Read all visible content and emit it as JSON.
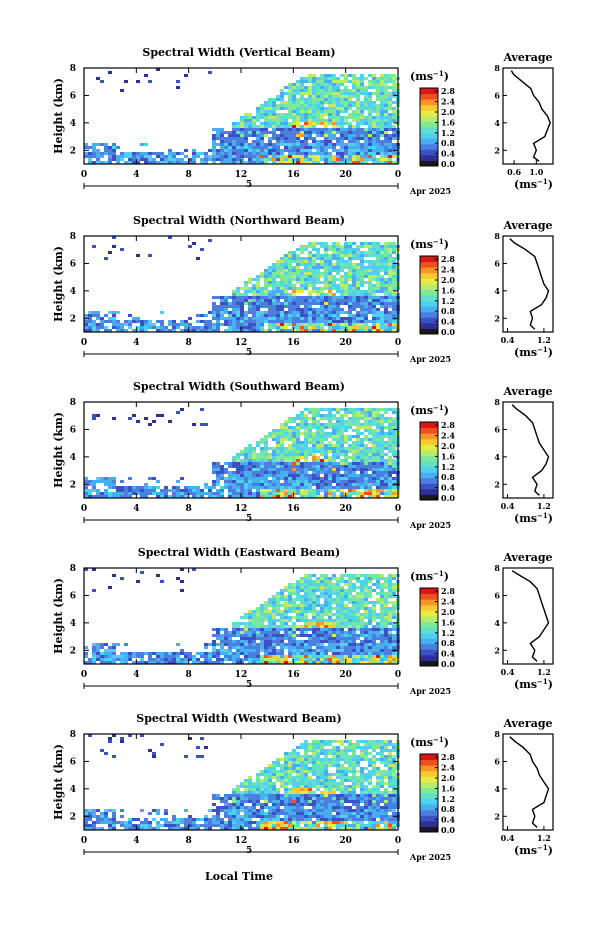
{
  "colors": {
    "colorscale": [
      "#1a1a1a",
      "#2e3192",
      "#3a52c4",
      "#4a7fe0",
      "#48aef0",
      "#4fd0f0",
      "#60e0c8",
      "#7ee89a",
      "#b8ec6a",
      "#e8ec40",
      "#f8c830",
      "#f89428",
      "#f05020",
      "#d81818"
    ]
  },
  "common": {
    "colorbar_unit": "(ms",
    "colorbar_unit_sup": "−1",
    "colorbar_unit_close": ")",
    "avg_title": "Average",
    "avg_xlabel": "(ms",
    "avg_xlabel_sup": "−1",
    "avg_xlabel_close": ")",
    "date_day": "5",
    "date_month": "Apr 2025",
    "ylabel": "Height (km)",
    "xlabel": "Local Time"
  },
  "chart_data": [
    {
      "type": "heatmap",
      "title": "Spectral Width (Vertical Beam)",
      "ylabel": "Height (km)",
      "x_ticks": [
        "0",
        "4",
        "8",
        "12",
        "16",
        "20",
        "0"
      ],
      "xlim": [
        0,
        24
      ],
      "y_ticks": [
        "2",
        "4",
        "6",
        "8"
      ],
      "ylim": [
        1,
        8
      ],
      "colorbar_ticks": [
        "0.0",
        "0.4",
        "0.8",
        "1.2",
        "1.6",
        "2.0",
        "2.4",
        "2.8"
      ],
      "colorbar_range": [
        0,
        3.0
      ],
      "avg_xticks": [
        "0.6",
        "1.0"
      ],
      "avg_xlim": [
        0.4,
        1.3
      ],
      "avg_profile": {
        "height": [
          1.2,
          1.5,
          2.0,
          2.5,
          3.0,
          3.5,
          4.0,
          4.5,
          5.0,
          5.5,
          6.0,
          6.5,
          7.0,
          7.5,
          7.8
        ],
        "value": [
          1.05,
          0.95,
          1.0,
          0.95,
          1.15,
          1.2,
          1.25,
          1.2,
          1.1,
          1.05,
          0.95,
          0.9,
          0.75,
          0.6,
          0.55
        ]
      }
    },
    {
      "type": "heatmap",
      "title": "Spectral Width (Northward Beam)",
      "ylabel": "Height (km)",
      "x_ticks": [
        "0",
        "4",
        "8",
        "12",
        "16",
        "20",
        "0"
      ],
      "xlim": [
        0,
        24
      ],
      "y_ticks": [
        "2",
        "4",
        "6",
        "8"
      ],
      "ylim": [
        1,
        8
      ],
      "colorbar_ticks": [
        "0.0",
        "0.4",
        "0.8",
        "1.2",
        "1.6",
        "2.0",
        "2.4",
        "2.8"
      ],
      "colorbar_range": [
        0,
        3.0
      ],
      "avg_xticks": [
        "0.4",
        "1.2"
      ],
      "avg_xlim": [
        0.3,
        1.4
      ],
      "avg_profile": {
        "height": [
          1.2,
          1.5,
          2.0,
          2.5,
          3.0,
          3.5,
          4.0,
          4.5,
          5.0,
          5.5,
          6.0,
          6.5,
          7.0,
          7.5,
          7.8
        ],
        "value": [
          1.0,
          0.9,
          0.95,
          0.9,
          1.15,
          1.25,
          1.3,
          1.2,
          1.15,
          1.1,
          1.05,
          1.0,
          0.8,
          0.55,
          0.45
        ]
      }
    },
    {
      "type": "heatmap",
      "title": "Spectral Width (Southward Beam)",
      "ylabel": "Height (km)",
      "x_ticks": [
        "0",
        "4",
        "8",
        "12",
        "16",
        "20",
        "0"
      ],
      "xlim": [
        0,
        24
      ],
      "y_ticks": [
        "2",
        "4",
        "6",
        "8"
      ],
      "ylim": [
        1,
        8
      ],
      "colorbar_ticks": [
        "0.0",
        "0.4",
        "0.8",
        "1.2",
        "1.6",
        "2.0",
        "2.4",
        "2.8"
      ],
      "colorbar_range": [
        0,
        3.0
      ],
      "avg_xticks": [
        "0.4",
        "1.2"
      ],
      "avg_xlim": [
        0.3,
        1.4
      ],
      "avg_profile": {
        "height": [
          1.2,
          1.5,
          2.0,
          2.5,
          3.0,
          3.5,
          4.0,
          4.5,
          5.0,
          5.5,
          6.0,
          6.5,
          7.0,
          7.5,
          7.8
        ],
        "value": [
          1.1,
          1.0,
          1.05,
          0.95,
          1.15,
          1.25,
          1.3,
          1.2,
          1.1,
          1.05,
          1.0,
          0.95,
          0.8,
          0.6,
          0.5
        ]
      }
    },
    {
      "type": "heatmap",
      "title": "Spectral Width (Eastward Beam)",
      "ylabel": "Height (km)",
      "x_ticks": [
        "0",
        "4",
        "8",
        "12",
        "16",
        "20",
        "0"
      ],
      "xlim": [
        0,
        24
      ],
      "y_ticks": [
        "2",
        "4",
        "6",
        "8"
      ],
      "ylim": [
        1,
        8
      ],
      "colorbar_ticks": [
        "0.0",
        "0.4",
        "0.8",
        "1.2",
        "1.6",
        "2.0",
        "2.4",
        "2.8"
      ],
      "colorbar_range": [
        0,
        3.0
      ],
      "avg_xticks": [
        "0.4",
        "1.2"
      ],
      "avg_xlim": [
        0.3,
        1.4
      ],
      "avg_profile": {
        "height": [
          1.2,
          1.5,
          2.0,
          2.5,
          3.0,
          3.5,
          4.0,
          4.5,
          5.0,
          5.5,
          6.0,
          6.5,
          7.0,
          7.5,
          7.8
        ],
        "value": [
          1.05,
          0.95,
          1.0,
          0.9,
          1.1,
          1.2,
          1.3,
          1.25,
          1.2,
          1.15,
          1.1,
          1.05,
          0.9,
          0.65,
          0.5
        ]
      }
    },
    {
      "type": "heatmap",
      "title": "Spectral Width (Westward Beam)",
      "ylabel": "Height (km)",
      "x_ticks": [
        "0",
        "4",
        "8",
        "12",
        "16",
        "20",
        "0"
      ],
      "xlim": [
        0,
        24
      ],
      "y_ticks": [
        "2",
        "4",
        "6",
        "8"
      ],
      "ylim": [
        1,
        8
      ],
      "colorbar_ticks": [
        "0.0",
        "0.4",
        "0.8",
        "1.2",
        "1.6",
        "2.0",
        "2.4",
        "2.8"
      ],
      "colorbar_range": [
        0,
        3.0
      ],
      "avg_xticks": [
        "0.4",
        "1.2"
      ],
      "avg_xlim": [
        0.3,
        1.4
      ],
      "avg_profile": {
        "height": [
          1.2,
          1.5,
          2.0,
          2.5,
          3.0,
          3.5,
          4.0,
          4.5,
          5.0,
          5.5,
          6.0,
          6.5,
          7.0,
          7.5,
          7.8
        ],
        "value": [
          1.05,
          0.95,
          1.0,
          0.95,
          1.2,
          1.25,
          1.3,
          1.2,
          1.1,
          1.05,
          0.95,
          0.9,
          0.75,
          0.55,
          0.45
        ]
      }
    }
  ]
}
